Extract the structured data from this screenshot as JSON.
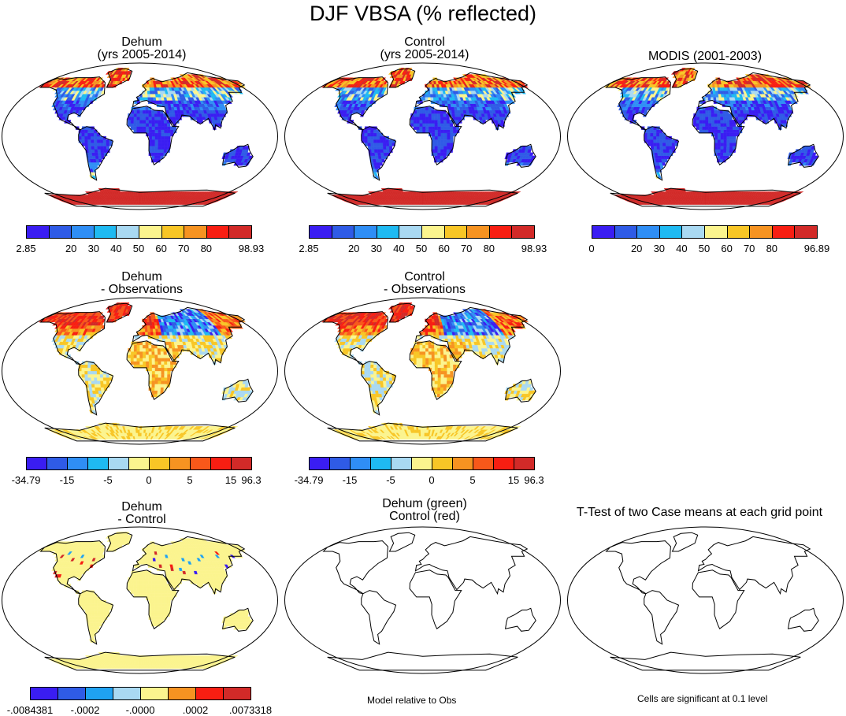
{
  "title": "DJF VBSA (% reflected)",
  "colors": {
    "ocean": "#ffffff",
    "outline": "#000000",
    "abs_scale": [
      "#3a1df2",
      "#2f5be6",
      "#2f8ef5",
      "#1fbaf2",
      "#a9d9f2",
      "#fbf48e",
      "#f8c626",
      "#f69321",
      "#f81e12",
      "#d22a28"
    ],
    "diff_scale": [
      "#3a1df2",
      "#2f5be6",
      "#2f8ef5",
      "#1fbaf2",
      "#a9d9f2",
      "#fbf48e",
      "#f8c626",
      "#f69321",
      "#f8581a",
      "#f81e12",
      "#d22a28"
    ],
    "ratio_scale": [
      "#3a1df2",
      "#2f5be6",
      "#1fa2f2",
      "#a9d9f2",
      "#fbf48e",
      "#f69321",
      "#f81e12",
      "#d22a28"
    ]
  },
  "chart_data": [
    {
      "type": "heatmap",
      "id": "dehum",
      "title_lines": [
        "Dehum",
        "(yrs 2005-2014)"
      ],
      "field": "absolute",
      "range": [
        2.85,
        98.93
      ],
      "colorbar_labels": [
        "2.85",
        "20",
        "30",
        "40",
        "50",
        "60",
        "70",
        "80",
        "98.93"
      ]
    },
    {
      "type": "heatmap",
      "id": "control",
      "title_lines": [
        "Control",
        "(yrs 2005-2014)"
      ],
      "field": "absolute",
      "range": [
        2.85,
        98.93
      ],
      "colorbar_labels": [
        "2.85",
        "20",
        "30",
        "40",
        "50",
        "60",
        "70",
        "80",
        "98.93"
      ]
    },
    {
      "type": "heatmap",
      "id": "modis",
      "title_lines": [
        "MODIS (2001-2003)"
      ],
      "field": "absolute",
      "range": [
        0,
        96.89
      ],
      "colorbar_labels": [
        "0",
        "20",
        "30",
        "40",
        "50",
        "60",
        "70",
        "80",
        "96.89"
      ]
    },
    {
      "type": "heatmap",
      "id": "dehum_obs",
      "title_lines": [
        "Dehum",
        "- Observations"
      ],
      "field": "difference",
      "range": [
        -34.79,
        96.3
      ],
      "colorbar_labels": [
        "-34.79",
        "-15",
        "-5",
        "0",
        "5",
        "15",
        "96.3"
      ]
    },
    {
      "type": "heatmap",
      "id": "control_obs",
      "title_lines": [
        "Control",
        "- Observations"
      ],
      "field": "difference",
      "range": [
        -34.79,
        96.3
      ],
      "colorbar_labels": [
        "-34.79",
        "-15",
        "-5",
        "0",
        "5",
        "15",
        "96.3"
      ]
    },
    {
      "type": "heatmap",
      "id": "dehum_control",
      "title_lines": [
        "Dehum",
        "- Control"
      ],
      "field": "difference",
      "range": [
        -0.0084381,
        0.0073318
      ],
      "colorbar_labels": [
        "-.0084381",
        "-.0002",
        "-.0000",
        ".0002",
        ".0073318"
      ]
    },
    {
      "type": "map",
      "id": "taylor",
      "title_lines": [
        "Dehum (green)",
        "Control (red)"
      ],
      "note": "Model relative to Obs"
    },
    {
      "type": "map",
      "id": "ttest",
      "title_lines": [
        "T-Test of two Case means at each grid point"
      ],
      "note": "Cells are significant at 0.1 level"
    }
  ]
}
